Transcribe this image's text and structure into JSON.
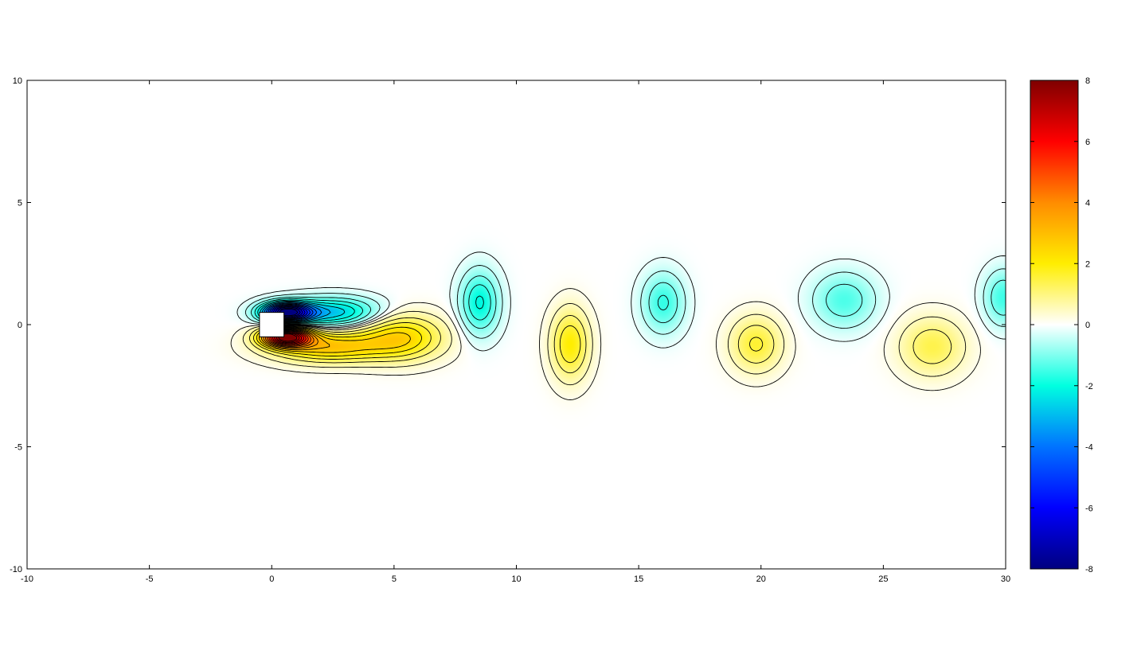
{
  "chart_data": {
    "type": "heatmap",
    "title": "",
    "xlabel": "",
    "ylabel": "",
    "xlim": [
      -10,
      30
    ],
    "ylim": [
      -10,
      10
    ],
    "x_ticks": [
      "-10",
      "-5",
      "0",
      "5",
      "10",
      "15",
      "20",
      "25",
      "30"
    ],
    "y_ticks": [
      "-10",
      "-5",
      "0",
      "5",
      "10"
    ],
    "grid": false,
    "colorbar": {
      "range": [
        -8,
        8
      ],
      "ticks": [
        "-8",
        "-6",
        "-4",
        "-2",
        "0",
        "2",
        "4",
        "6",
        "8"
      ],
      "colors": {
        "-8": "#00007f",
        "-6": "#0000ff",
        "-4": "#0073ff",
        "-2": "#00ffe0",
        "0": "#ffffff",
        "2": "#ffee00",
        "4": "#ff8c00",
        "6": "#ff0000",
        "8": "#7f0000"
      }
    },
    "contour_lines": true,
    "contour_color": "#000000",
    "obstacle": {
      "x_range": [
        -0.5,
        0.5
      ],
      "y_range": [
        -0.5,
        0.5
      ]
    },
    "vortices": [
      {
        "x": 0.6,
        "y": 0.5,
        "strength": -7.5,
        "sigma_x": 0.7,
        "sigma_y": 0.28
      },
      {
        "x": 0.6,
        "y": -0.5,
        "strength": 7.5,
        "sigma_x": 0.7,
        "sigma_y": 0.28
      },
      {
        "x": 2.5,
        "y": 0.5,
        "strength": -2.8,
        "sigma_x": 1.3,
        "sigma_y": 0.42
      },
      {
        "x": 2.3,
        "y": -0.9,
        "strength": 2.8,
        "sigma_x": 1.6,
        "sigma_y": 0.45
      },
      {
        "x": 5.3,
        "y": -0.5,
        "strength": 2.4,
        "sigma_x": 1.2,
        "sigma_y": 0.65
      },
      {
        "x": 8.5,
        "y": 0.9,
        "strength": -2.1,
        "sigma_x": 0.55,
        "sigma_y": 0.9
      },
      {
        "x": 12.2,
        "y": -0.8,
        "strength": 2.0,
        "sigma_x": 0.55,
        "sigma_y": 1.0
      },
      {
        "x": 16.0,
        "y": 0.9,
        "strength": -1.6,
        "sigma_x": 0.6,
        "sigma_y": 0.85
      },
      {
        "x": 19.8,
        "y": -0.8,
        "strength": 1.6,
        "sigma_x": 0.75,
        "sigma_y": 0.8
      },
      {
        "x": 23.4,
        "y": 1.0,
        "strength": -1.4,
        "sigma_x": 0.9,
        "sigma_y": 0.8
      },
      {
        "x": 27.0,
        "y": -0.9,
        "strength": 1.4,
        "sigma_x": 0.95,
        "sigma_y": 0.85
      },
      {
        "x": 29.9,
        "y": 1.1,
        "strength": -1.5,
        "sigma_x": 0.55,
        "sigma_y": 0.8
      }
    ]
  }
}
